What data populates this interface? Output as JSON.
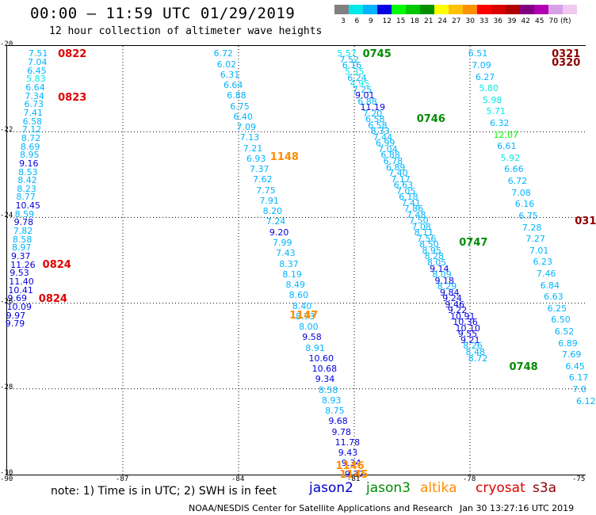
{
  "title": "00:00 – 11:59 UTC 01/29/2019",
  "subtitle": "12 hour collection of altimeter wave heights",
  "colorbar": {
    "colors": [
      "#808080",
      "#00e8e8",
      "#00b4ff",
      "#0000e0",
      "#00ff00",
      "#00c800",
      "#009000",
      "#ffff00",
      "#ffc000",
      "#ff9000",
      "#ff0000",
      "#d80000",
      "#b00000",
      "#800080",
      "#b000b0",
      "#d8a0e8",
      "#f0c8f0"
    ],
    "labels": [
      "3",
      "6",
      "9",
      "12",
      "15",
      "18",
      "21",
      "24",
      "27",
      "30",
      "33",
      "36",
      "39",
      "42",
      "45",
      "70",
      "(ft)"
    ]
  },
  "note": "note: 1) Time is in UTC; 2) SWH is in feet",
  "legend": [
    {
      "name": "jason2",
      "color": "#0000c8"
    },
    {
      "name": "jason3",
      "color": "#008c00"
    },
    {
      "name": "altika",
      "color": "#ff8c00"
    },
    {
      "name": "cryosat",
      "color": "#e00000"
    },
    {
      "name": "s3a",
      "color": "#8c0000"
    }
  ],
  "credit": "NOAA/NESDIS Center for Satellite Applications and Research",
  "stamp": "Jan 30 13:27:16 UTC 2019",
  "chart_data": {
    "type": "scatter",
    "xlim": [
      -90,
      -75
    ],
    "ylim": [
      -30,
      -20
    ],
    "xticks": [
      "-90",
      "-87",
      "-84",
      "-81",
      "-78",
      "-75"
    ],
    "yticks": [
      "-20",
      "-22",
      "-24",
      "-26",
      "-28",
      "-30"
    ],
    "grid": true,
    "tracks": [
      {
        "satellite": "cryosat",
        "x_start": -89.2,
        "y_start": -20.1,
        "x_end": -89.8,
        "y_end": -26.4,
        "values": [
          "7.51",
          "7.04",
          "6.45",
          "5.83",
          "6.64",
          "7.34",
          "6.73",
          "7.41",
          "6.58",
          "7.12",
          "8.72",
          "8.69",
          "8.95",
          "9.16",
          "8.53",
          "8.42",
          "8.23",
          "8.77",
          "10.45",
          "8.59",
          "9.78",
          "7.82",
          "8.58",
          "8.97",
          "9.37",
          "11.26",
          "9.53",
          "11.40",
          "10.41",
          "9.69",
          "10.09",
          "9.97",
          "9.79"
        ]
      },
      {
        "satellite": "jason2",
        "x_start": -84.4,
        "y_start": -20.1,
        "x_end": -81.0,
        "y_end": -29.9,
        "values": [
          "6.72",
          "6.02",
          "6.31",
          "6.64",
          "6.88",
          "6.75",
          "6.40",
          "7.09",
          "7.13",
          "7.21",
          "6.93",
          "7.37",
          "7.62",
          "7.75",
          "7.91",
          "8.20",
          "7.24",
          "9.20",
          "7.99",
          "7.43",
          "8.37",
          "8.19",
          "8.49",
          "8.60",
          "8.40",
          "8.73",
          "8.00",
          "9.58",
          "8.91",
          "10.60",
          "10.68",
          "9.34",
          "8.58",
          "8.93",
          "8.75",
          "9.68",
          "9.78",
          "11.78",
          "9.43",
          "9.34",
          "9.37"
        ]
      },
      {
        "satellite": "jason3",
        "x_start": -81.2,
        "y_start": -20.1,
        "x_end": -77.8,
        "y_end": -27.2,
        "values": [
          "5.57",
          "7.52",
          "6.16",
          "5.35",
          "6.24",
          "4.95",
          "7.25",
          "9.01",
          "6.88",
          "11.19",
          "7.20",
          "6.58",
          "6.58",
          "8.33",
          "7.44",
          "6.99",
          "7.04",
          "6.88",
          "6.78",
          "6.89",
          "7.40",
          "7.17",
          "6.63",
          "7.05",
          "6.18",
          "7.41",
          "7.86",
          "7.48",
          "7.50",
          "7.08",
          "8.11",
          "7.56",
          "8.50",
          "8.95",
          "8.28",
          "8.05",
          "9.14",
          "8.09",
          "9.18",
          "8.29",
          "9.84",
          "9.24",
          "9.46",
          "9.22",
          "10.91",
          "10.36",
          "10.10",
          "9.55",
          "9.21",
          "8.26",
          "8.48",
          "8.72"
        ]
      },
      {
        "satellite": "s3a",
        "x_start": -77.8,
        "y_start": -20.1,
        "x_end": -75.0,
        "y_end": -28.2,
        "values": [
          "6.51",
          "7.09",
          "6.27",
          "5.80",
          "5.98",
          "5.71",
          "6.32",
          "12.07",
          "6.61",
          "5.92",
          "6.66",
          "6.72",
          "7.08",
          "6.16",
          "6.75",
          "7.28",
          "7.27",
          "7.01",
          "6.23",
          "7.46",
          "6.84",
          "6.63",
          "6.25",
          "6.50",
          "6.52",
          "6.89",
          "7.69",
          "6.45",
          "6.17",
          "7.0",
          "6.12"
        ]
      }
    ],
    "time_labels": [
      {
        "text": "0822",
        "satellite": "cryosat",
        "x": -88.6,
        "y": -20.1
      },
      {
        "text": "0823",
        "satellite": "cryosat",
        "x": -88.6,
        "y": -21.1
      },
      {
        "text": "0824",
        "satellite": "cryosat",
        "x": -89.0,
        "y": -25.0
      },
      {
        "text": "0824",
        "satellite": "cryosat",
        "x": -89.1,
        "y": -25.8
      },
      {
        "text": "0745",
        "satellite": "jason3",
        "x": -80.7,
        "y": -20.1
      },
      {
        "text": "0746",
        "satellite": "jason3",
        "x": -79.3,
        "y": -21.6
      },
      {
        "text": "0747",
        "satellite": "jason3",
        "x": -78.2,
        "y": -24.5
      },
      {
        "text": "0748",
        "satellite": "jason3",
        "x": -76.9,
        "y": -27.4
      },
      {
        "text": "1148",
        "satellite": "altika",
        "x": -83.1,
        "y": -22.5
      },
      {
        "text": "1147",
        "satellite": "altika",
        "x": -82.6,
        "y": -26.2
      },
      {
        "text": "1146",
        "satellite": "altika",
        "x": -81.4,
        "y": -29.7
      },
      {
        "text": "1145",
        "satellite": "altika",
        "x": -81.3,
        "y": -29.9
      },
      {
        "text": "0321",
        "satellite": "s3a",
        "x": -75.8,
        "y": -20.1
      },
      {
        "text": "0320",
        "satellite": "s3a",
        "x": -75.8,
        "y": -20.3
      },
      {
        "text": "031",
        "satellite": "s3a",
        "x": -75.2,
        "y": -24.0
      }
    ]
  }
}
